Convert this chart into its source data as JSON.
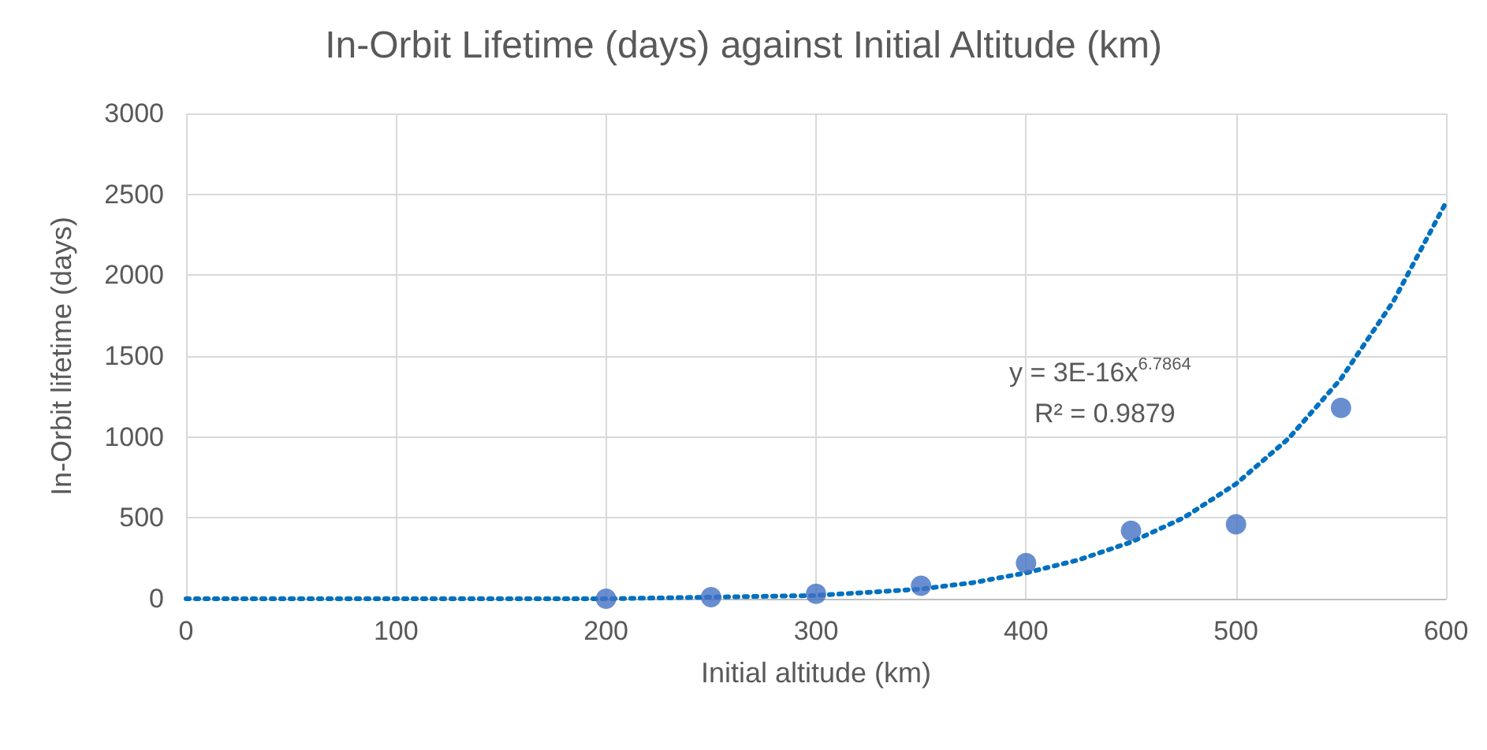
{
  "chart_data": {
    "type": "scatter",
    "title": "In-Orbit Lifetime (days) against Initial Altitude (km)",
    "xlabel": "Initial altitude (km)",
    "ylabel": "In-Orbit lifetime (days)",
    "series": [
      {
        "color": "#4472c4",
        "marker": "circle",
        "x": [
          200,
          250,
          300,
          350,
          400,
          450,
          500,
          550
        ],
        "values": [
          0,
          10,
          30,
          80,
          220,
          420,
          460,
          1180
        ]
      },
      {
        "type": "line",
        "color": "#0070c0",
        "marker": "none",
        "line_style": "dotted",
        "x": [
          0,
          100,
          150,
          200,
          250,
          300,
          350,
          375,
          400,
          425,
          450,
          475,
          500,
          525,
          550,
          575,
          600
        ],
        "values": [
          0,
          0,
          0,
          0,
          10,
          20,
          60,
          100,
          160,
          240,
          350,
          500,
          710,
          990,
          1360,
          1840,
          2450
        ]
      }
    ],
    "xlim": [
      0,
      600
    ],
    "xticks": [
      0,
      100,
      200,
      300,
      400,
      500,
      600
    ],
    "ylim": [
      0,
      3000
    ],
    "yticks": [
      0,
      500,
      1000,
      1500,
      2000,
      2500,
      3000
    ],
    "grid": true,
    "annotations": [
      "y = 3E-16x$^{6.7864}$",
      "R² = 0.9879"
    ]
  }
}
